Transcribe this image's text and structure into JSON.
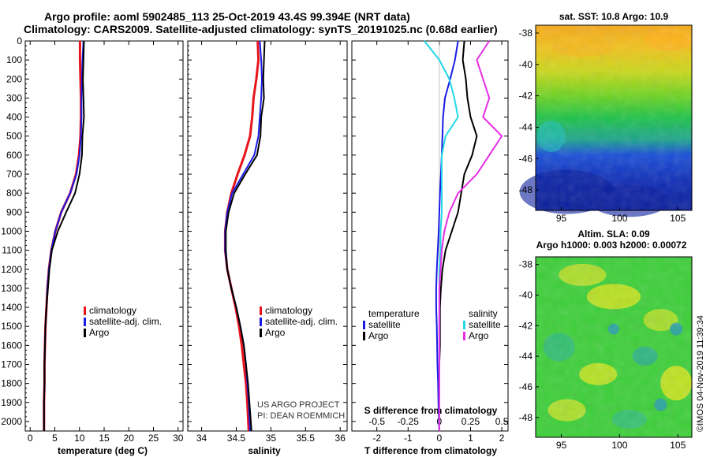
{
  "header": {
    "title_line1": "Argo profile: aoml 5902485_113 25-Oct-2019 43.4S 99.394E (NRT data)",
    "title_line2": "Climatology: CARS2009. Satellite-adjusted climatology: synTS_20191025.nc (0.68d earlier)"
  },
  "colors": {
    "climatology": "#e8141c",
    "satellite": "#1a1ae6",
    "argo": "#000000",
    "sat_salinity": "#22d8e6",
    "argo_salinity": "#e62ee6"
  },
  "chart_data": [
    {
      "type": "line",
      "title": "",
      "xlabel": "temperature (deg C)",
      "ylabel": "",
      "ylim": [
        2050,
        0
      ],
      "xlim": [
        -1,
        31
      ],
      "y_ticks": [
        0,
        100,
        200,
        300,
        400,
        500,
        600,
        700,
        800,
        900,
        1000,
        1100,
        1200,
        1300,
        1400,
        1500,
        1600,
        1700,
        1800,
        1900,
        2000
      ],
      "y_tick_labels": [
        "0",
        "100",
        "200",
        "300",
        "400",
        "500",
        "600",
        "700",
        "800",
        "900",
        "1000",
        "1100",
        "1200",
        "1300",
        "1400",
        "1500",
        "1600",
        "1700",
        "1800",
        "1900",
        "2000"
      ],
      "x_ticks": [
        0,
        5,
        10,
        15,
        20,
        25,
        30
      ],
      "x_tick_labels": [
        "0",
        "5",
        "10",
        "15",
        "20",
        "25",
        "30"
      ],
      "legend": [
        "climatology",
        "satellite-adj. clim.",
        "Argo"
      ],
      "series": [
        {
          "name": "climatology",
          "color": "#e8141c",
          "x": [
            10.1,
            10.1,
            10.2,
            10.3,
            10.3,
            10.2,
            9.9,
            9.3,
            8.1,
            6.3,
            5.1,
            4.3,
            3.8,
            3.5,
            3.3,
            3.1,
            3.0,
            2.9,
            2.9,
            2.8,
            2.8
          ],
          "y": [
            0,
            100,
            200,
            300,
            400,
            500,
            600,
            700,
            800,
            900,
            1000,
            1100,
            1200,
            1300,
            1400,
            1500,
            1600,
            1700,
            1800,
            1900,
            2050
          ]
        },
        {
          "name": "satellite-adj. clim.",
          "color": "#1a1ae6",
          "x": [
            10.8,
            10.6,
            10.5,
            10.4,
            10.4,
            10.3,
            10.0,
            9.4,
            8.1,
            6.3,
            5.1,
            4.3,
            3.8,
            3.5,
            3.3,
            3.1,
            3.0,
            2.9,
            2.9,
            2.8,
            2.8
          ],
          "y": [
            0,
            100,
            200,
            300,
            400,
            500,
            600,
            700,
            800,
            900,
            1000,
            1100,
            1200,
            1300,
            1400,
            1500,
            1600,
            1700,
            1800,
            1900,
            2050
          ]
        },
        {
          "name": "Argo",
          "color": "#000000",
          "x": [
            10.9,
            10.8,
            10.7,
            10.8,
            10.9,
            10.6,
            10.5,
            10.0,
            9.1,
            7.3,
            5.6,
            4.4,
            3.9,
            3.6,
            3.3,
            3.1,
            3.0,
            2.9,
            2.9,
            2.8,
            2.8
          ],
          "y": [
            0,
            100,
            200,
            300,
            400,
            500,
            600,
            700,
            800,
            900,
            1000,
            1100,
            1200,
            1300,
            1400,
            1500,
            1600,
            1700,
            1800,
            1900,
            2050
          ]
        }
      ]
    },
    {
      "type": "line",
      "xlabel": "salinity",
      "ylim": [
        2050,
        0
      ],
      "xlim": [
        33.8,
        36.1
      ],
      "x_ticks": [
        34,
        34.5,
        35,
        35.5,
        36
      ],
      "x_tick_labels": [
        "34",
        "34.5",
        "35",
        "35.5",
        "36"
      ],
      "legend": [
        "climatology",
        "satellite-adj. clim.",
        "Argo"
      ],
      "annotations": [
        "US ARGO PROJECT",
        "PI: DEAN ROEMMICH"
      ],
      "series": [
        {
          "name": "climatology",
          "color": "#e8141c",
          "x": [
            34.81,
            34.82,
            34.79,
            34.75,
            34.73,
            34.7,
            34.62,
            34.52,
            34.43,
            34.37,
            34.34,
            34.34,
            34.37,
            34.43,
            34.49,
            34.54,
            34.58,
            34.61,
            34.64,
            34.66,
            34.68
          ],
          "y": [
            0,
            100,
            200,
            300,
            400,
            500,
            600,
            700,
            800,
            900,
            1000,
            1100,
            1200,
            1300,
            1400,
            1500,
            1600,
            1700,
            1800,
            1900,
            2050
          ]
        },
        {
          "name": "satellite-adj. clim.",
          "color": "#1a1ae6",
          "x": [
            34.84,
            34.86,
            34.87,
            34.86,
            34.84,
            34.82,
            34.76,
            34.6,
            34.44,
            34.37,
            34.34,
            34.34,
            34.37,
            34.43,
            34.5,
            34.56,
            34.61,
            34.64,
            34.66,
            34.68,
            34.7
          ],
          "y": [
            0,
            100,
            200,
            300,
            400,
            500,
            600,
            700,
            800,
            900,
            1000,
            1100,
            1200,
            1300,
            1400,
            1500,
            1600,
            1700,
            1800,
            1900,
            2050
          ]
        },
        {
          "name": "Argo",
          "color": "#000000",
          "x": [
            34.91,
            34.9,
            34.89,
            34.9,
            34.86,
            34.85,
            34.8,
            34.63,
            34.47,
            34.39,
            34.35,
            34.35,
            34.37,
            34.43,
            34.5,
            34.56,
            34.61,
            34.64,
            34.67,
            34.69,
            34.72
          ],
          "y": [
            0,
            100,
            200,
            300,
            400,
            500,
            600,
            700,
            800,
            900,
            1000,
            1100,
            1200,
            1300,
            1400,
            1500,
            1600,
            1700,
            1800,
            1900,
            2050
          ]
        }
      ]
    },
    {
      "type": "line",
      "xlabel": "T difference from climatology",
      "xlabel_top": "S difference from climatology",
      "ylim": [
        2050,
        0
      ],
      "xlim": [
        -2.8,
        2.2
      ],
      "x_ticks": [
        -2,
        -1,
        0,
        1,
        2
      ],
      "x_tick_labels": [
        "-2",
        "-1",
        "0",
        "1",
        "2"
      ],
      "s_ticks": [
        -0.5,
        -0.25,
        0,
        0.25,
        0.5
      ],
      "s_tick_labels": [
        "-0.5",
        "-0.25",
        "0",
        "0.25",
        "0.5"
      ],
      "legend_left_title": "temperature",
      "legend_right_title": "salinity",
      "legend": [
        "satellite",
        "Argo",
        "satellite",
        "Argo"
      ],
      "series": [
        {
          "name": "temperature satellite",
          "color": "#1a1ae6",
          "x": [
            0.6,
            0.5,
            0.35,
            0.18,
            0.12,
            0.1,
            0.08,
            0.05,
            0.02,
            0.0,
            -0.02,
            -0.05,
            -0.08,
            -0.1,
            -0.1,
            -0.08,
            -0.07,
            -0.06,
            -0.04,
            -0.03,
            0.0
          ],
          "y": [
            0,
            100,
            200,
            300,
            400,
            500,
            600,
            700,
            800,
            900,
            1000,
            1100,
            1200,
            1300,
            1400,
            1500,
            1600,
            1700,
            1800,
            1900,
            2050
          ]
        },
        {
          "name": "temperature Argo",
          "color": "#000000",
          "x": [
            0.8,
            0.75,
            0.85,
            0.9,
            1.0,
            1.2,
            1.05,
            0.8,
            0.7,
            0.6,
            0.4,
            0.2,
            0.1,
            0.05,
            0.02,
            0.02,
            0.02,
            0.0,
            0.0,
            0.0,
            0.0
          ],
          "y": [
            0,
            100,
            200,
            300,
            400,
            500,
            600,
            700,
            800,
            900,
            1000,
            1100,
            1200,
            1300,
            1400,
            1500,
            1600,
            1700,
            1800,
            1900,
            2050
          ]
        },
        {
          "name": "salinity satellite",
          "color": "#22d8e6",
          "x": [
            -0.12,
            0.0,
            0.08,
            0.12,
            0.15,
            0.05,
            0.02,
            0.02,
            0.02,
            0.02,
            0.01,
            0.01,
            0.0,
            0.0,
            0.0,
            0.0,
            0.0,
            0.0,
            0.0,
            0.0,
            0.0
          ],
          "y": [
            0,
            100,
            200,
            300,
            400,
            500,
            600,
            700,
            800,
            900,
            1000,
            1100,
            1200,
            1300,
            1400,
            1500,
            1600,
            1700,
            1800,
            1900,
            2050
          ]
        },
        {
          "name": "salinity Argo",
          "color": "#e62ee6",
          "x": [
            0.4,
            0.3,
            0.35,
            0.4,
            0.35,
            0.5,
            0.4,
            0.3,
            0.15,
            0.08,
            0.04,
            0.02,
            0.01,
            0.0,
            0.0,
            0.0,
            0.0,
            0.0,
            0.0,
            0.0,
            0.0
          ],
          "y": [
            0,
            100,
            200,
            300,
            400,
            500,
            600,
            700,
            800,
            900,
            1000,
            1100,
            1200,
            1300,
            1400,
            1500,
            1600,
            1700,
            1800,
            1900,
            2050
          ]
        }
      ]
    },
    {
      "type": "heatmap",
      "title": "sat. SST: 10.8 Argo: 10.9",
      "xlim": [
        92.8,
        106.2
      ],
      "ylim": [
        -49.3,
        -37.5
      ],
      "x_ticks": [
        95,
        100,
        105
      ],
      "x_tick_labels": [
        "95",
        "100",
        "105"
      ],
      "y_ticks": [
        -38,
        -40,
        -42,
        -44,
        -46,
        -48
      ],
      "y_tick_labels": [
        "-38",
        "-40",
        "-42",
        "-44",
        "-46",
        "-48"
      ]
    },
    {
      "type": "heatmap",
      "title": "Altim. SLA: 0.09",
      "subtitle": "Argo h1000: 0.003 h2000: 0.00072",
      "xlim": [
        92.8,
        106.2
      ],
      "ylim": [
        -49.3,
        -37.5
      ],
      "x_ticks": [
        95,
        100,
        105
      ],
      "x_tick_labels": [
        "95",
        "100",
        "105"
      ],
      "y_ticks": [
        -38,
        -40,
        -42,
        -44,
        -46,
        -48
      ],
      "y_tick_labels": [
        "-38",
        "-40",
        "-42",
        "-44",
        "-46",
        "-48"
      ]
    }
  ],
  "legend_labels": {
    "climatology": "climatology",
    "satellite_adj": "satellite-adj. clim.",
    "argo": "Argo",
    "temperature": "temperature",
    "salinity": "salinity",
    "satellite": "satellite"
  },
  "annotations": {
    "project": "US ARGO PROJECT",
    "pi": "PI: DEAN ROEMMICH",
    "imos": "©IMOS 04-Nov-2019 11:39:34"
  }
}
